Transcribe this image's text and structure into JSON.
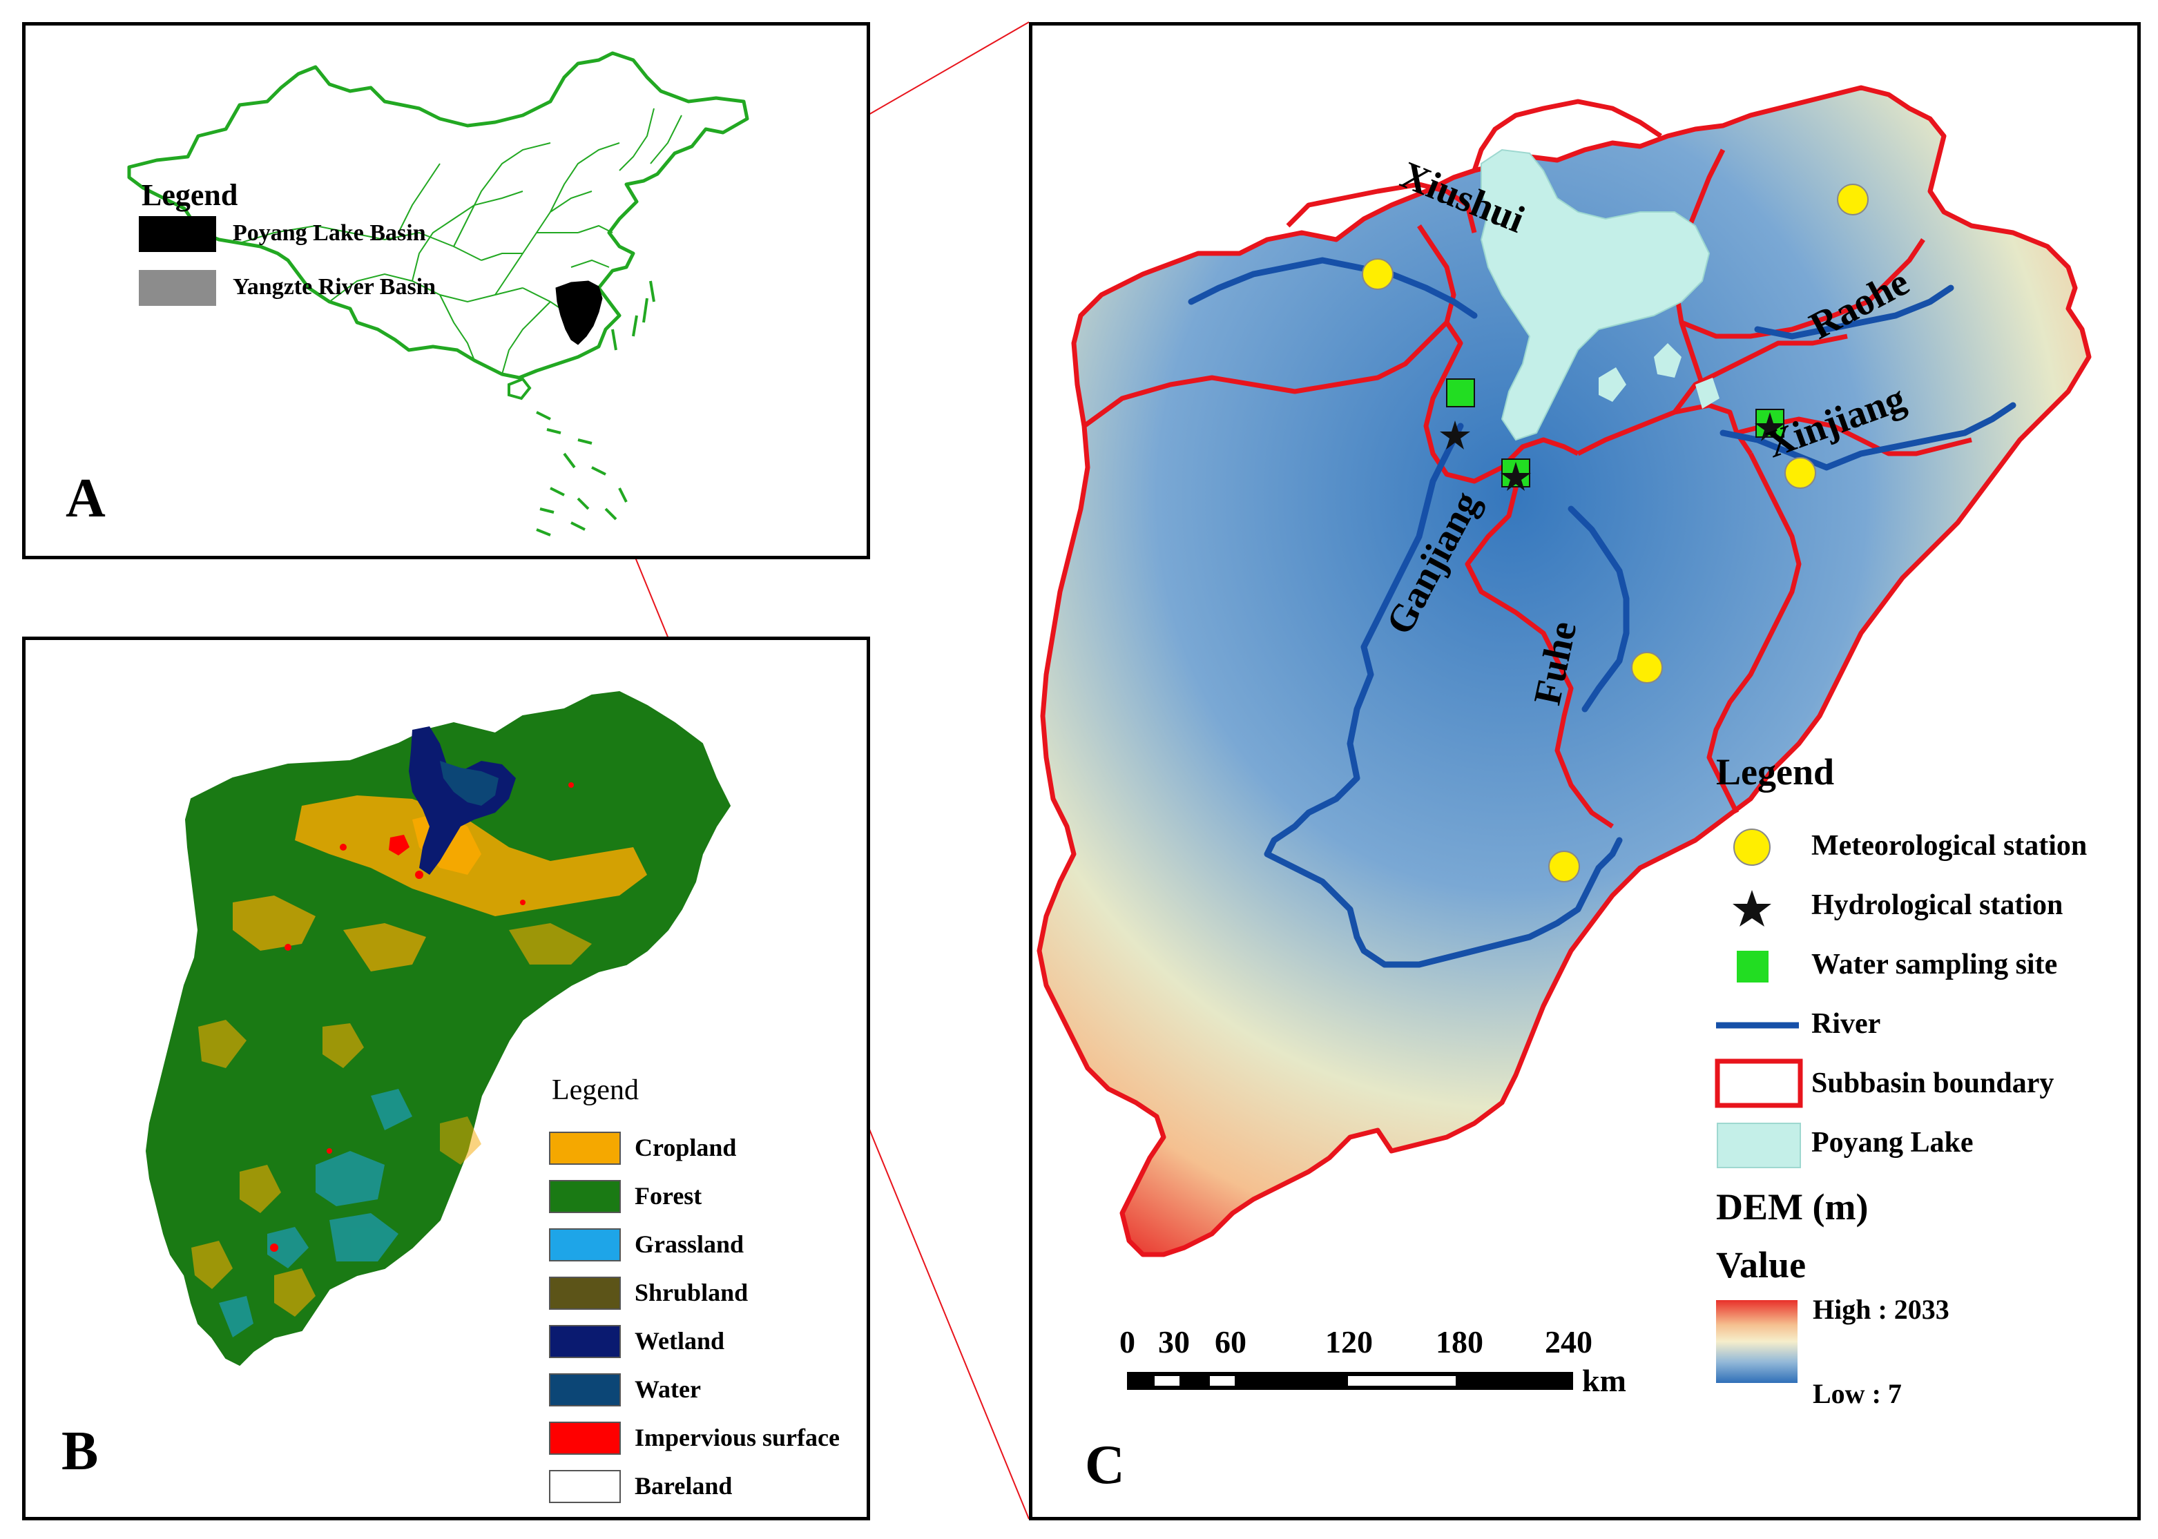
{
  "panel_a": {
    "letter": "A",
    "legend_title": "Legend",
    "legend_items": [
      {
        "label": "Poyang Lake Basin",
        "color": "#000000"
      },
      {
        "label": "Yangzte River Basin",
        "color": "#8c8c8c"
      }
    ],
    "border_color": "#22a822"
  },
  "panel_b": {
    "letter": "B",
    "legend_title": "Legend",
    "legend_items": [
      {
        "label": "Cropland",
        "color": "#f5a800"
      },
      {
        "label": "Forest",
        "color": "#1a7a14"
      },
      {
        "label": "Grassland",
        "color": "#1ea5e8"
      },
      {
        "label": "Shrubland",
        "color": "#5c5418"
      },
      {
        "label": "Wetland",
        "color": "#0a1a70"
      },
      {
        "label": "Water",
        "color": "#0c4676"
      },
      {
        "label": "Impervious surface",
        "color": "#ff0000"
      },
      {
        "label": "Bareland",
        "color": "#ffffff"
      }
    ]
  },
  "panel_c": {
    "letter": "C",
    "rivers": [
      "Xiushui",
      "Raohe",
      "Xinjiang",
      "Ganjiang",
      "Fuhe"
    ],
    "legend_title": "Legend",
    "legend_items": [
      {
        "label": "Meteorological station",
        "symbol": "circle"
      },
      {
        "label": "Hydrological station",
        "symbol": "star"
      },
      {
        "label": "Water sampling site",
        "symbol": "square"
      },
      {
        "label": "River",
        "symbol": "line"
      },
      {
        "label": "Subbasin boundary",
        "symbol": "red-box"
      },
      {
        "label": "Poyang Lake",
        "symbol": "lake-box"
      }
    ],
    "dem_title": "DEM (m)",
    "value_title": "Value",
    "high_label": "High : 2033",
    "low_label": "Low : 7",
    "dem_high": 2033,
    "dem_low": 7,
    "scale_ticks": [
      "0",
      "30",
      "60",
      "120",
      "180",
      "240"
    ],
    "scale_unit": "km",
    "colors": {
      "river": "#1650a8",
      "boundary": "#e8141c",
      "lake": "#c4efe8",
      "station": "#ffee00",
      "sampling": "#22dd22"
    }
  }
}
